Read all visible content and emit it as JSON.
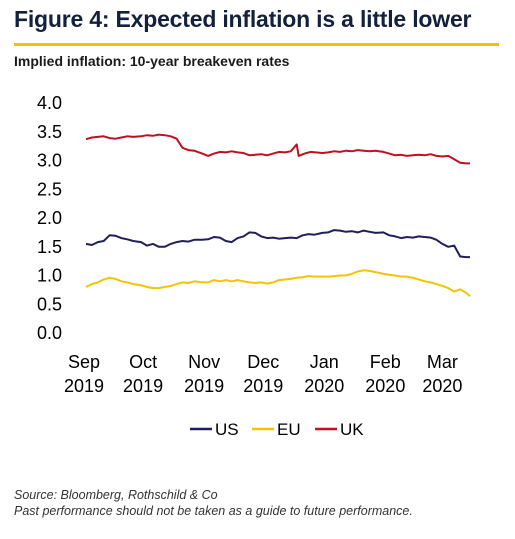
{
  "header": {
    "title": "Figure 4: Expected inflation is a little lower",
    "subtitle": "Implied inflation: 10-year breakeven rates",
    "accent_color": "#f2c200"
  },
  "footer": {
    "source": "Source: Bloomberg, Rothschild & Co",
    "disclaimer": "Past performance should not be taken as a guide to future performance."
  },
  "chart_data": {
    "type": "line",
    "title": "Implied inflation: 10-year breakeven rates",
    "xlabel": "",
    "ylabel": "",
    "ylim": [
      0.0,
      4.0
    ],
    "y_ticks": [
      "0.0",
      "0.5",
      "1.0",
      "1.5",
      "2.0",
      "2.5",
      "3.0",
      "3.5",
      "4.0"
    ],
    "x_ticks": [
      {
        "date": "2019-09-01",
        "month": "Sep",
        "year": "2019"
      },
      {
        "date": "2019-10-01",
        "month": "Oct",
        "year": "2019"
      },
      {
        "date": "2019-11-01",
        "month": "Nov",
        "year": "2019"
      },
      {
        "date": "2019-12-01",
        "month": "Dec",
        "year": "2019"
      },
      {
        "date": "2020-01-01",
        "month": "Jan",
        "year": "2020"
      },
      {
        "date": "2020-02-01",
        "month": "Feb",
        "year": "2020"
      },
      {
        "date": "2020-03-01",
        "month": "Mar",
        "year": "2020"
      }
    ],
    "grid": false,
    "legend_position": "bottom",
    "series": [
      {
        "name": "US",
        "color": "#1f1f5c",
        "points": [
          [
            "2019-09-02",
            1.55
          ],
          [
            "2019-09-05",
            1.53
          ],
          [
            "2019-09-08",
            1.58
          ],
          [
            "2019-09-11",
            1.6
          ],
          [
            "2019-09-14",
            1.7
          ],
          [
            "2019-09-17",
            1.69
          ],
          [
            "2019-09-20",
            1.65
          ],
          [
            "2019-09-23",
            1.63
          ],
          [
            "2019-09-26",
            1.6
          ],
          [
            "2019-09-30",
            1.58
          ],
          [
            "2019-10-03",
            1.52
          ],
          [
            "2019-10-06",
            1.55
          ],
          [
            "2019-10-09",
            1.5
          ],
          [
            "2019-10-12",
            1.5
          ],
          [
            "2019-10-15",
            1.55
          ],
          [
            "2019-10-18",
            1.58
          ],
          [
            "2019-10-21",
            1.6
          ],
          [
            "2019-10-24",
            1.59
          ],
          [
            "2019-10-27",
            1.62
          ],
          [
            "2019-10-31",
            1.62
          ],
          [
            "2019-11-03",
            1.63
          ],
          [
            "2019-11-06",
            1.67
          ],
          [
            "2019-11-09",
            1.66
          ],
          [
            "2019-11-12",
            1.6
          ],
          [
            "2019-11-15",
            1.58
          ],
          [
            "2019-11-18",
            1.65
          ],
          [
            "2019-11-21",
            1.68
          ],
          [
            "2019-11-24",
            1.75
          ],
          [
            "2019-11-27",
            1.74
          ],
          [
            "2019-11-30",
            1.68
          ],
          [
            "2019-12-03",
            1.65
          ],
          [
            "2019-12-06",
            1.66
          ],
          [
            "2019-12-09",
            1.64
          ],
          [
            "2019-12-12",
            1.65
          ],
          [
            "2019-12-15",
            1.66
          ],
          [
            "2019-12-18",
            1.65
          ],
          [
            "2019-12-21",
            1.7
          ],
          [
            "2019-12-24",
            1.72
          ],
          [
            "2019-12-27",
            1.71
          ],
          [
            "2019-12-31",
            1.74
          ],
          [
            "2020-01-03",
            1.75
          ],
          [
            "2020-01-06",
            1.79
          ],
          [
            "2020-01-09",
            1.78
          ],
          [
            "2020-01-12",
            1.76
          ],
          [
            "2020-01-15",
            1.77
          ],
          [
            "2020-01-18",
            1.75
          ],
          [
            "2020-01-21",
            1.78
          ],
          [
            "2020-01-24",
            1.76
          ],
          [
            "2020-01-27",
            1.74
          ],
          [
            "2020-01-31",
            1.75
          ],
          [
            "2020-02-03",
            1.7
          ],
          [
            "2020-02-06",
            1.68
          ],
          [
            "2020-02-09",
            1.65
          ],
          [
            "2020-02-12",
            1.67
          ],
          [
            "2020-02-15",
            1.66
          ],
          [
            "2020-02-18",
            1.68
          ],
          [
            "2020-02-21",
            1.67
          ],
          [
            "2020-02-24",
            1.66
          ],
          [
            "2020-02-27",
            1.62
          ],
          [
            "2020-03-01",
            1.55
          ],
          [
            "2020-03-04",
            1.5
          ],
          [
            "2020-03-07",
            1.52
          ],
          [
            "2020-03-10",
            1.33
          ],
          [
            "2020-03-13",
            1.32
          ],
          [
            "2020-03-15",
            1.32
          ]
        ]
      },
      {
        "name": "EU",
        "color": "#f5c400",
        "points": [
          [
            "2019-09-02",
            0.8
          ],
          [
            "2019-09-05",
            0.85
          ],
          [
            "2019-09-08",
            0.88
          ],
          [
            "2019-09-11",
            0.93
          ],
          [
            "2019-09-14",
            0.96
          ],
          [
            "2019-09-17",
            0.94
          ],
          [
            "2019-09-20",
            0.9
          ],
          [
            "2019-09-23",
            0.88
          ],
          [
            "2019-09-26",
            0.85
          ],
          [
            "2019-09-30",
            0.83
          ],
          [
            "2019-10-03",
            0.8
          ],
          [
            "2019-10-06",
            0.78
          ],
          [
            "2019-10-09",
            0.78
          ],
          [
            "2019-10-12",
            0.8
          ],
          [
            "2019-10-15",
            0.82
          ],
          [
            "2019-10-18",
            0.85
          ],
          [
            "2019-10-21",
            0.88
          ],
          [
            "2019-10-24",
            0.87
          ],
          [
            "2019-10-27",
            0.9
          ],
          [
            "2019-10-31",
            0.88
          ],
          [
            "2019-11-03",
            0.88
          ],
          [
            "2019-11-06",
            0.92
          ],
          [
            "2019-11-09",
            0.9
          ],
          [
            "2019-11-12",
            0.92
          ],
          [
            "2019-11-15",
            0.9
          ],
          [
            "2019-11-18",
            0.92
          ],
          [
            "2019-11-21",
            0.9
          ],
          [
            "2019-11-24",
            0.88
          ],
          [
            "2019-11-27",
            0.87
          ],
          [
            "2019-11-30",
            0.88
          ],
          [
            "2019-12-03",
            0.86
          ],
          [
            "2019-12-06",
            0.88
          ],
          [
            "2019-12-09",
            0.92
          ],
          [
            "2019-12-12",
            0.93
          ],
          [
            "2019-12-15",
            0.94
          ],
          [
            "2019-12-18",
            0.96
          ],
          [
            "2019-12-21",
            0.97
          ],
          [
            "2019-12-24",
            0.99
          ],
          [
            "2019-12-27",
            0.98
          ],
          [
            "2019-12-31",
            0.98
          ],
          [
            "2020-01-03",
            0.98
          ],
          [
            "2020-01-06",
            0.99
          ],
          [
            "2020-01-09",
            1.0
          ],
          [
            "2020-01-12",
            1.0
          ],
          [
            "2020-01-15",
            1.03
          ],
          [
            "2020-01-18",
            1.07
          ],
          [
            "2020-01-21",
            1.09
          ],
          [
            "2020-01-24",
            1.08
          ],
          [
            "2020-01-27",
            1.06
          ],
          [
            "2020-01-31",
            1.03
          ],
          [
            "2020-02-03",
            1.01
          ],
          [
            "2020-02-06",
            1.0
          ],
          [
            "2020-02-09",
            0.98
          ],
          [
            "2020-02-12",
            0.98
          ],
          [
            "2020-02-15",
            0.96
          ],
          [
            "2020-02-18",
            0.93
          ],
          [
            "2020-02-21",
            0.9
          ],
          [
            "2020-02-24",
            0.88
          ],
          [
            "2020-02-27",
            0.85
          ],
          [
            "2020-03-01",
            0.82
          ],
          [
            "2020-03-04",
            0.78
          ],
          [
            "2020-03-07",
            0.72
          ],
          [
            "2020-03-10",
            0.76
          ],
          [
            "2020-03-13",
            0.7
          ],
          [
            "2020-03-15",
            0.64
          ]
        ]
      },
      {
        "name": "UK",
        "color": "#c0101f",
        "points": [
          [
            "2019-09-02",
            3.37
          ],
          [
            "2019-09-05",
            3.4
          ],
          [
            "2019-09-08",
            3.41
          ],
          [
            "2019-09-11",
            3.42
          ],
          [
            "2019-09-14",
            3.39
          ],
          [
            "2019-09-17",
            3.38
          ],
          [
            "2019-09-20",
            3.4
          ],
          [
            "2019-09-23",
            3.42
          ],
          [
            "2019-09-26",
            3.41
          ],
          [
            "2019-09-30",
            3.42
          ],
          [
            "2019-10-03",
            3.44
          ],
          [
            "2019-10-06",
            3.43
          ],
          [
            "2019-10-09",
            3.45
          ],
          [
            "2019-10-12",
            3.44
          ],
          [
            "2019-10-15",
            3.42
          ],
          [
            "2019-10-18",
            3.38
          ],
          [
            "2019-10-21",
            3.22
          ],
          [
            "2019-10-24",
            3.18
          ],
          [
            "2019-10-27",
            3.17
          ],
          [
            "2019-10-31",
            3.12
          ],
          [
            "2019-11-03",
            3.08
          ],
          [
            "2019-11-06",
            3.12
          ],
          [
            "2019-11-09",
            3.15
          ],
          [
            "2019-11-12",
            3.14
          ],
          [
            "2019-11-15",
            3.16
          ],
          [
            "2019-11-18",
            3.14
          ],
          [
            "2019-11-21",
            3.13
          ],
          [
            "2019-11-24",
            3.09
          ],
          [
            "2019-11-27",
            3.1
          ],
          [
            "2019-11-30",
            3.11
          ],
          [
            "2019-12-03",
            3.09
          ],
          [
            "2019-12-06",
            3.12
          ],
          [
            "2019-12-09",
            3.15
          ],
          [
            "2019-12-12",
            3.14
          ],
          [
            "2019-12-15",
            3.16
          ],
          [
            "2019-12-18",
            3.28
          ],
          [
            "2019-12-19",
            3.08
          ],
          [
            "2019-12-22",
            3.12
          ],
          [
            "2019-12-25",
            3.15
          ],
          [
            "2019-12-31",
            3.13
          ],
          [
            "2020-01-03",
            3.14
          ],
          [
            "2020-01-06",
            3.16
          ],
          [
            "2020-01-09",
            3.15
          ],
          [
            "2020-01-12",
            3.17
          ],
          [
            "2020-01-15",
            3.16
          ],
          [
            "2020-01-18",
            3.18
          ],
          [
            "2020-01-21",
            3.17
          ],
          [
            "2020-01-24",
            3.16
          ],
          [
            "2020-01-27",
            3.17
          ],
          [
            "2020-01-31",
            3.15
          ],
          [
            "2020-02-03",
            3.12
          ],
          [
            "2020-02-06",
            3.09
          ],
          [
            "2020-02-09",
            3.1
          ],
          [
            "2020-02-12",
            3.08
          ],
          [
            "2020-02-15",
            3.09
          ],
          [
            "2020-02-18",
            3.1
          ],
          [
            "2020-02-21",
            3.09
          ],
          [
            "2020-02-24",
            3.11
          ],
          [
            "2020-02-27",
            3.08
          ],
          [
            "2020-03-01",
            3.07
          ],
          [
            "2020-03-04",
            3.08
          ],
          [
            "2020-03-07",
            3.02
          ],
          [
            "2020-03-10",
            2.96
          ],
          [
            "2020-03-13",
            2.95
          ],
          [
            "2020-03-15",
            2.95
          ]
        ]
      }
    ]
  }
}
